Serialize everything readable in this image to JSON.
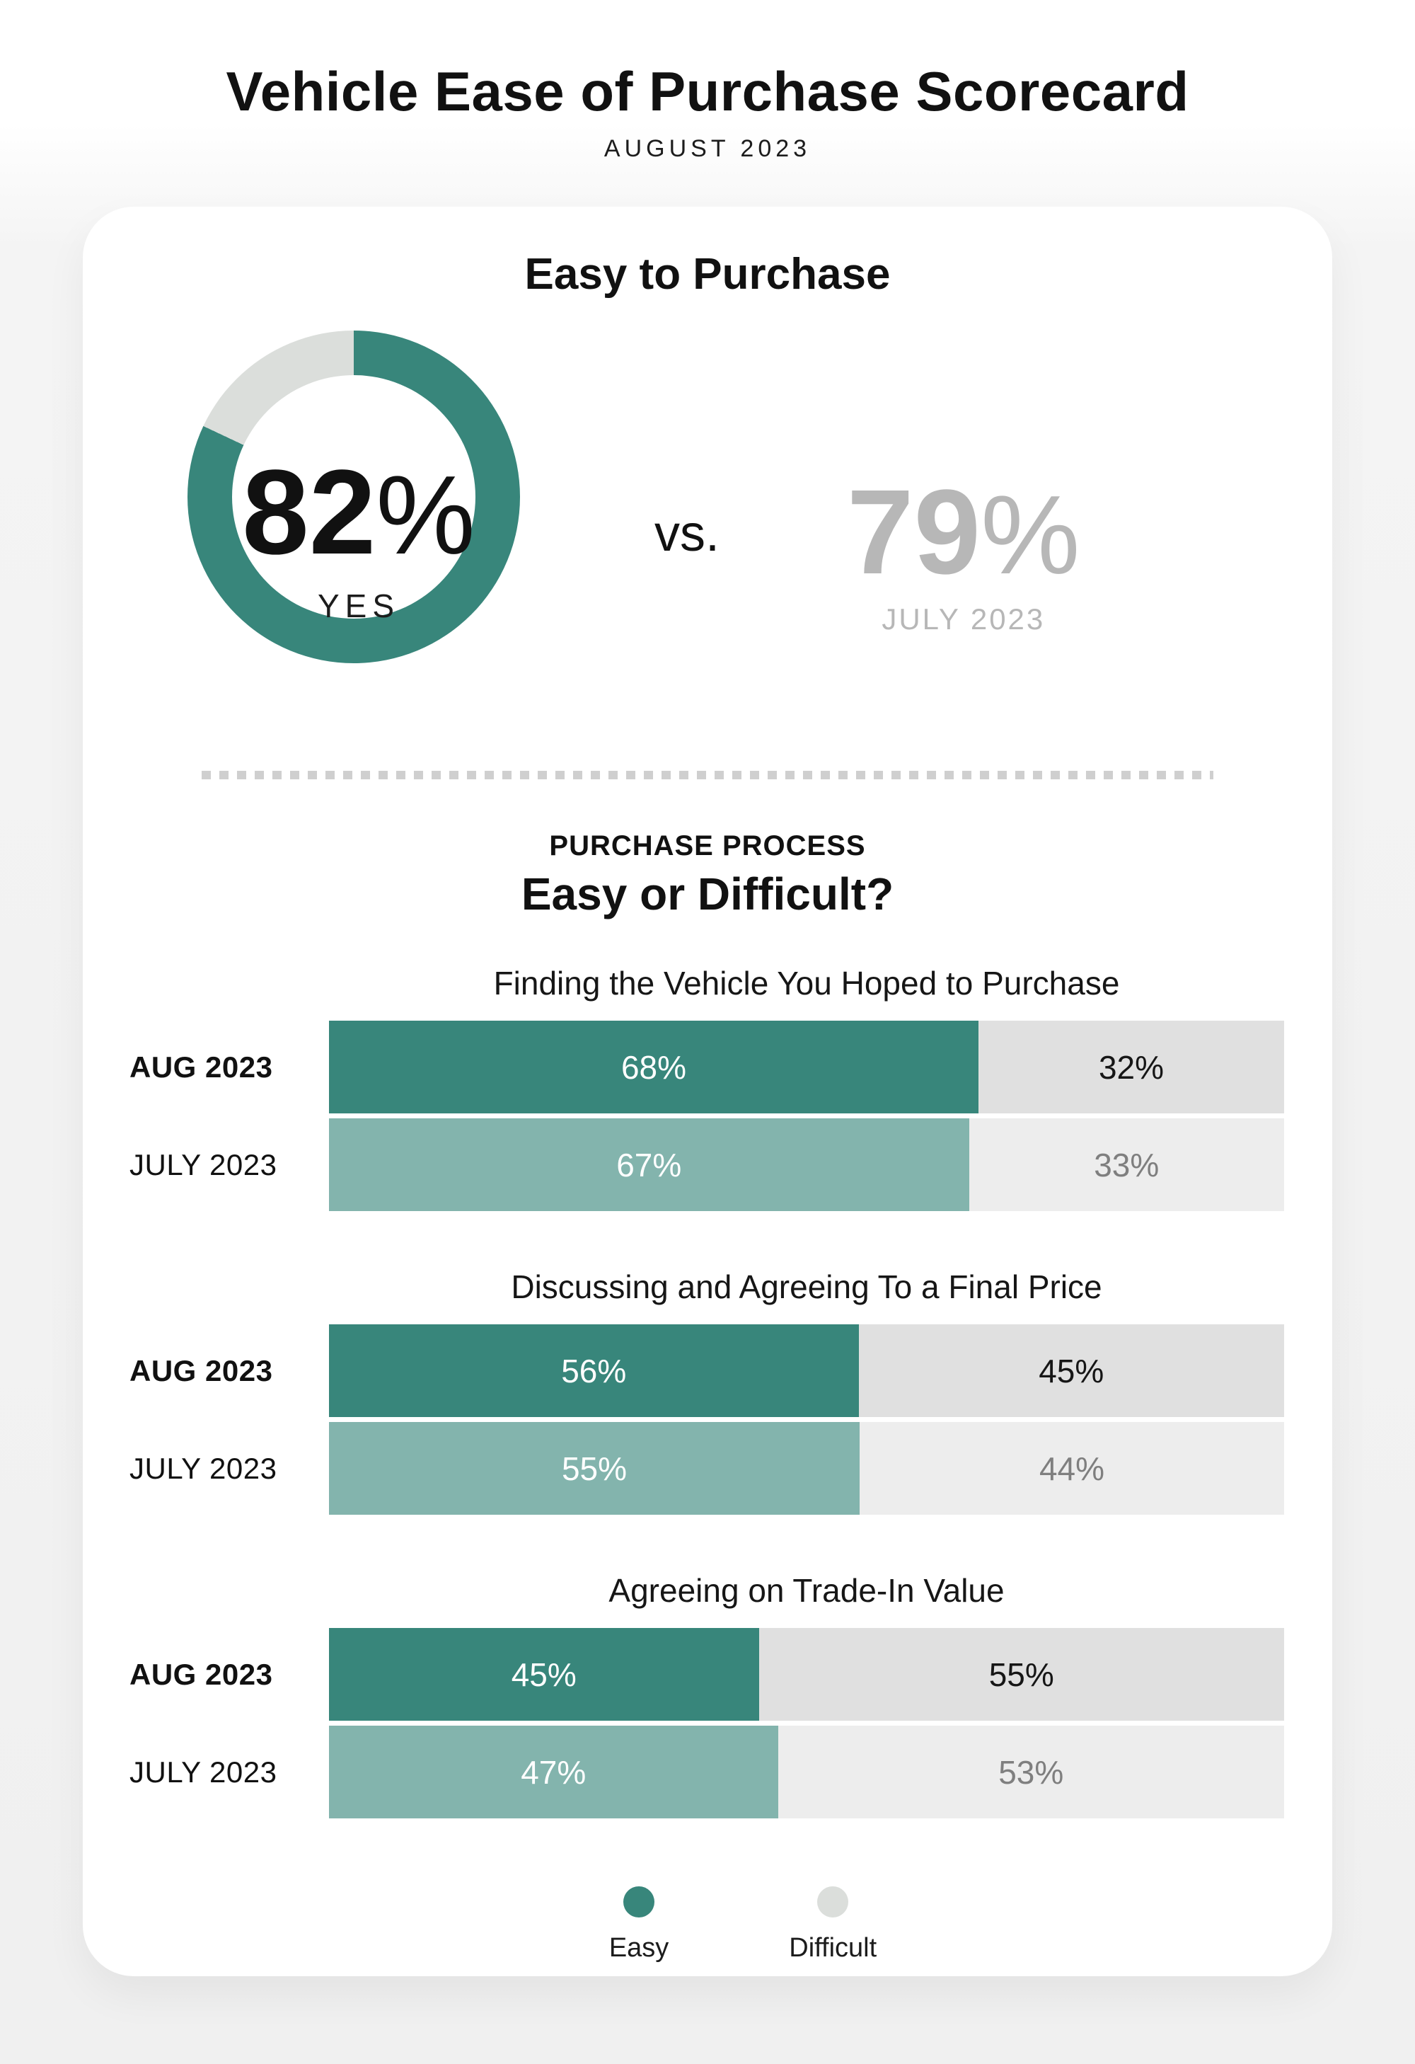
{
  "page": {
    "title": "Vehicle Ease of Purchase Scorecard",
    "subtitle": "AUGUST 2023"
  },
  "colors": {
    "teal": "#38867B",
    "teal_light": "#83B4AD",
    "difficult_gray": "#E0E0E0",
    "difficult_gray_light": "#EDEDED",
    "donut_remainder_gray": "#DBDEDB",
    "muted_text": "#B7B7B7"
  },
  "hero": {
    "heading": "Easy to Purchase",
    "current": {
      "value": "82",
      "unit": "%",
      "percent": 82,
      "label": "YES"
    },
    "comparator": "vs.",
    "previous": {
      "value": "79",
      "unit": "%",
      "percent": 79,
      "label": "JULY 2023"
    }
  },
  "process_section": {
    "eyebrow": "PURCHASE PROCESS",
    "heading": "Easy or Difficult?"
  },
  "chart_data": {
    "type": "bar",
    "orientation": "horizontal",
    "stacked": true,
    "unit": "percent",
    "legend_position": "bottom",
    "series_labels": [
      "Easy",
      "Difficult"
    ],
    "groups": [
      {
        "title": "Finding the Vehicle You Hoped to Purchase",
        "rows": [
          {
            "label": "AUG 2023",
            "segments": [
              {
                "name": "Easy",
                "value": 68,
                "text": "68%"
              },
              {
                "name": "Difficult",
                "value": 32,
                "text": "32%"
              }
            ]
          },
          {
            "label": "JULY 2023",
            "segments": [
              {
                "name": "Easy",
                "value": 67,
                "text": "67%"
              },
              {
                "name": "Difficult",
                "value": 33,
                "text": "33%"
              }
            ]
          }
        ]
      },
      {
        "title": "Discussing and Agreeing To a Final Price",
        "rows": [
          {
            "label": "AUG 2023",
            "segments": [
              {
                "name": "Easy",
                "value": 56,
                "text": "56%"
              },
              {
                "name": "Difficult",
                "value": 45,
                "text": "45%"
              }
            ]
          },
          {
            "label": "JULY 2023",
            "segments": [
              {
                "name": "Easy",
                "value": 55,
                "text": "55%"
              },
              {
                "name": "Difficult",
                "value": 44,
                "text": "44%"
              }
            ]
          }
        ]
      },
      {
        "title": "Agreeing on Trade-In Value",
        "rows": [
          {
            "label": "AUG 2023",
            "segments": [
              {
                "name": "Easy",
                "value": 45,
                "text": "45%"
              },
              {
                "name": "Difficult",
                "value": 55,
                "text": "55%"
              }
            ]
          },
          {
            "label": "JULY 2023",
            "segments": [
              {
                "name": "Easy",
                "value": 47,
                "text": "47%"
              },
              {
                "name": "Difficult",
                "value": 53,
                "text": "53%"
              }
            ]
          }
        ]
      }
    ]
  },
  "legend": {
    "items": [
      {
        "label": "Easy"
      },
      {
        "label": "Difficult"
      }
    ]
  }
}
